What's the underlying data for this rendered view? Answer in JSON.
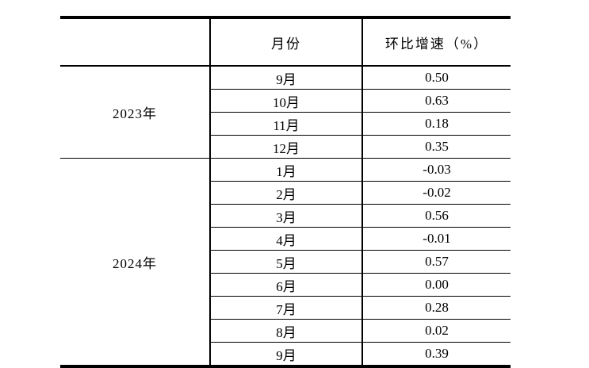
{
  "table": {
    "header": {
      "year_col": "",
      "month_col": "月份",
      "growth_col": "环比增速（%）"
    },
    "sections": [
      {
        "year": "2023年",
        "rows": [
          {
            "month": "9月",
            "value": "0.50"
          },
          {
            "month": "10月",
            "value": "0.63"
          },
          {
            "month": "11月",
            "value": "0.18"
          },
          {
            "month": "12月",
            "value": "0.35"
          }
        ]
      },
      {
        "year": "2024年",
        "rows": [
          {
            "month": "1月",
            "value": "-0.03"
          },
          {
            "month": "2月",
            "value": "-0.02"
          },
          {
            "month": "3月",
            "value": "0.56"
          },
          {
            "month": "4月",
            "value": "-0.01"
          },
          {
            "month": "5月",
            "value": "0.57"
          },
          {
            "month": "6月",
            "value": "0.00"
          },
          {
            "month": "7月",
            "value": "0.28"
          },
          {
            "month": "8月",
            "value": "0.02"
          },
          {
            "month": "9月",
            "value": "0.39"
          }
        ]
      }
    ],
    "colors": {
      "border": "#000000",
      "text": "#000000",
      "background": "#ffffff"
    }
  }
}
